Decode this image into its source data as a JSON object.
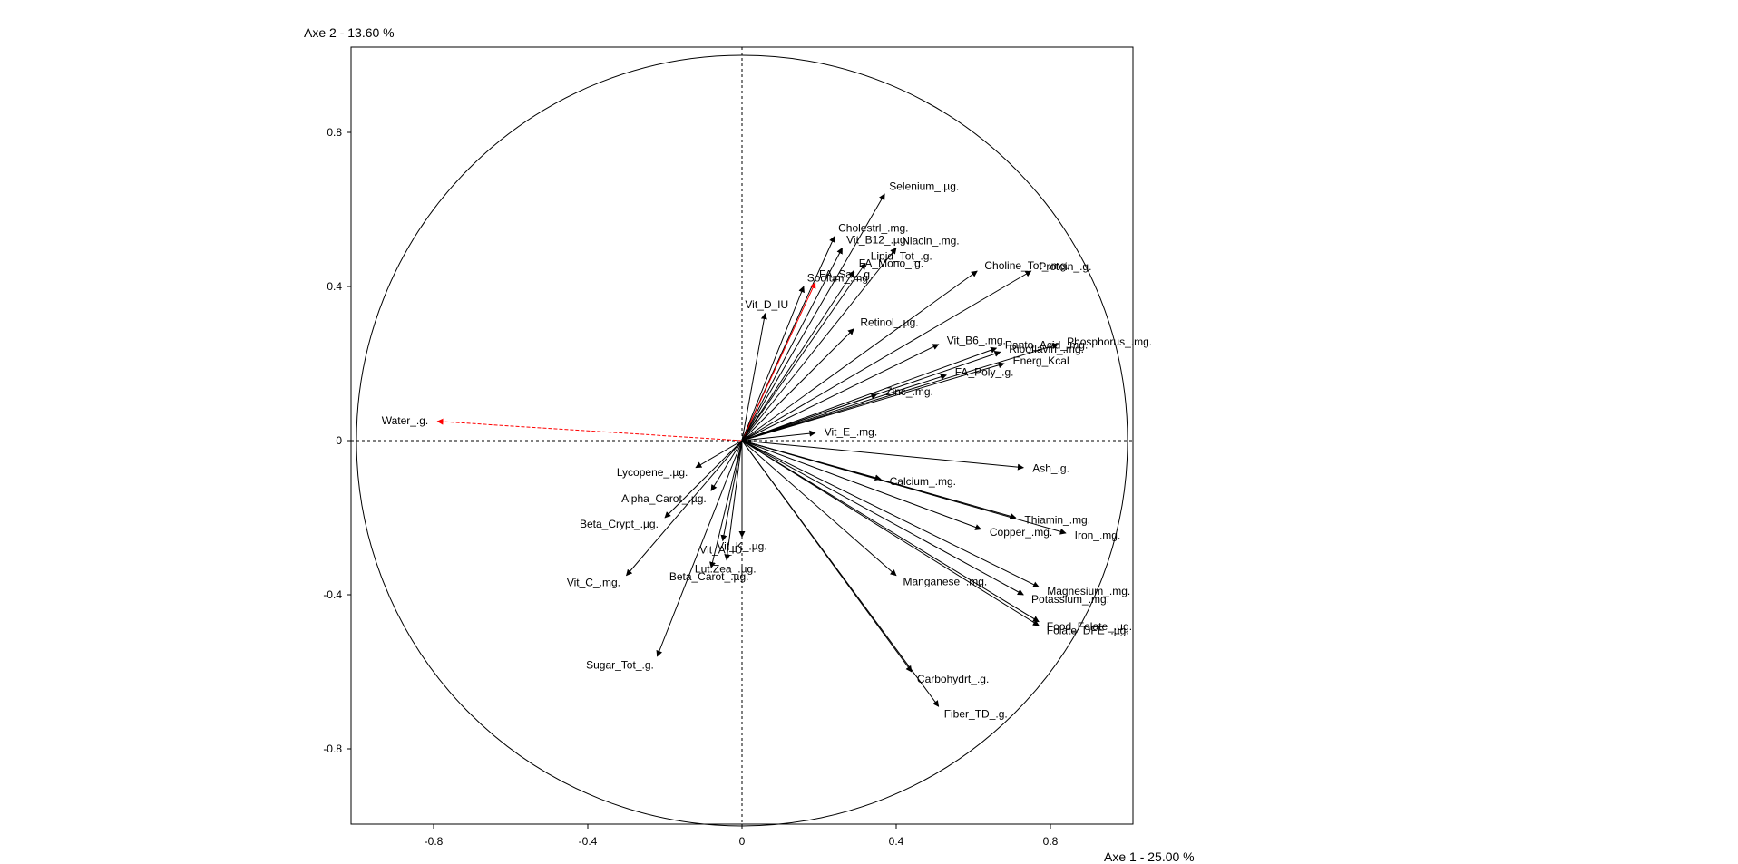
{
  "chart_data": {
    "type": "scatter",
    "subtype": "correlation-circle",
    "xlabel": "Axe 1  -  25.00 %",
    "ylabel": "Axe 2  -  13.60 %",
    "xlim": [
      -1.0,
      1.0
    ],
    "ylim": [
      -1.0,
      1.0
    ],
    "x_ticks": [
      -0.8,
      -0.4,
      0,
      0.4,
      0.8
    ],
    "y_ticks": [
      0.8,
      0.4,
      0,
      -0.4,
      -0.8
    ],
    "x_tick_labels": [
      "-0.8",
      "-0.4",
      "0",
      "0.4",
      "0.8"
    ],
    "y_tick_labels": [
      "0.8",
      "0.4",
      "0",
      "-0.4",
      "-0.8"
    ],
    "grid": false,
    "highlight_color": "#ff0000",
    "default_color": "#000000",
    "variables": [
      {
        "name": "Water_.g.",
        "x": -0.79,
        "y": 0.05,
        "highlight": true,
        "dashed": true
      },
      {
        "name": "Selenium_.µg.",
        "x": 0.37,
        "y": 0.64
      },
      {
        "name": "Cholestrl_.mg.",
        "x": 0.24,
        "y": 0.53
      },
      {
        "name": "Vit_B12_.µg.",
        "x": 0.26,
        "y": 0.5
      },
      {
        "name": "Niacin_.mg.",
        "x": 0.4,
        "y": 0.5
      },
      {
        "name": "FA_Sat_.g.",
        "x": 0.19,
        "y": 0.41,
        "highlight": true
      },
      {
        "name": "Lipid_Tot_.g.",
        "x": 0.32,
        "y": 0.46
      },
      {
        "name": "Choline_Tot_.mg.",
        "x": 0.61,
        "y": 0.44
      },
      {
        "name": "Protein_.g.",
        "x": 0.75,
        "y": 0.44
      },
      {
        "name": "Sodium_.mg.",
        "x": 0.16,
        "y": 0.4
      },
      {
        "name": "FA_Mono_.g.",
        "x": 0.29,
        "y": 0.44
      },
      {
        "name": "Vit_D_IU",
        "x": 0.06,
        "y": 0.33
      },
      {
        "name": "Retinol_.µg.",
        "x": 0.29,
        "y": 0.29
      },
      {
        "name": "Panto_Acid_.mg.",
        "x": 0.66,
        "y": 0.24
      },
      {
        "name": "Vit_B6_.mg.",
        "x": 0.51,
        "y": 0.25
      },
      {
        "name": "Riboflavin_.mg.",
        "x": 0.67,
        "y": 0.23
      },
      {
        "name": "Phosphorus_.mg.",
        "x": 0.82,
        "y": 0.25
      },
      {
        "name": "Energ_Kcal",
        "x": 0.68,
        "y": 0.2
      },
      {
        "name": "FA_Poly_.g.",
        "x": 0.53,
        "y": 0.17
      },
      {
        "name": "Zinc_.mg.",
        "x": 0.35,
        "y": 0.12
      },
      {
        "name": "Vit_E_.mg.",
        "x": 0.19,
        "y": 0.02
      },
      {
        "name": "Ash_.g.",
        "x": 0.73,
        "y": -0.07
      },
      {
        "name": "Calcium_.mg.",
        "x": 0.36,
        "y": -0.1
      },
      {
        "name": "Thiamin_.mg.",
        "x": 0.71,
        "y": -0.2
      },
      {
        "name": "Copper_.mg.",
        "x": 0.62,
        "y": -0.23
      },
      {
        "name": "Iron_.mg.",
        "x": 0.84,
        "y": -0.24
      },
      {
        "name": "Magnesium_.mg.",
        "x": 0.77,
        "y": -0.38
      },
      {
        "name": "Potassium_.mg.",
        "x": 0.73,
        "y": -0.4
      },
      {
        "name": "Food_Folate_.µg.",
        "x": 0.77,
        "y": -0.47
      },
      {
        "name": "Folate_DFE_.µg.",
        "x": 0.77,
        "y": -0.48
      },
      {
        "name": "Manganese_.mg.",
        "x": 0.4,
        "y": -0.35
      },
      {
        "name": "Carbohydrt_.g.",
        "x": 0.44,
        "y": -0.6
      },
      {
        "name": "Fiber_TD_.g.",
        "x": 0.51,
        "y": -0.69
      },
      {
        "name": "Lycopene_.µg.",
        "x": -0.12,
        "y": -0.07
      },
      {
        "name": "Alpha_Carot_.µg.",
        "x": -0.08,
        "y": -0.13
      },
      {
        "name": "Beta_Crypt_.µg.",
        "x": -0.2,
        "y": -0.2
      },
      {
        "name": "Vit_A_IU",
        "x": -0.05,
        "y": -0.26
      },
      {
        "name": "Lut.Zea_.µg.",
        "x": -0.04,
        "y": -0.31
      },
      {
        "name": "Vit_K_.µg.",
        "x": 0.0,
        "y": -0.25
      },
      {
        "name": "Vit_C_.mg.",
        "x": -0.3,
        "y": -0.35
      },
      {
        "name": "Beta_Carot_.µg.",
        "x": -0.08,
        "y": -0.33
      },
      {
        "name": "Sugar_Tot_.g.",
        "x": -0.22,
        "y": -0.56
      }
    ]
  }
}
